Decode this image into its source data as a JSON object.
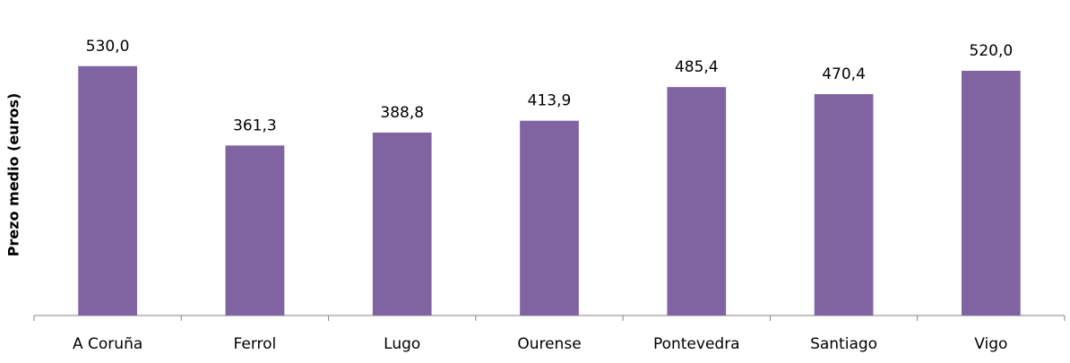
{
  "chart_data": {
    "type": "bar",
    "y_label": "Prezo medio (euros)",
    "categories": [
      "A Coruña",
      "Ferrol",
      "Lugo",
      "Ourense",
      "Pontevedra",
      "Santiago",
      "Vigo"
    ],
    "values": [
      530.0,
      361.3,
      388.8,
      413.9,
      485.4,
      470.4,
      520.0
    ],
    "value_labels": [
      "530,0",
      "361,3",
      "388,8",
      "413,9",
      "485,4",
      "470,4",
      "520,0"
    ],
    "color": "#8064a2",
    "ylim": [
      0,
      600
    ]
  }
}
